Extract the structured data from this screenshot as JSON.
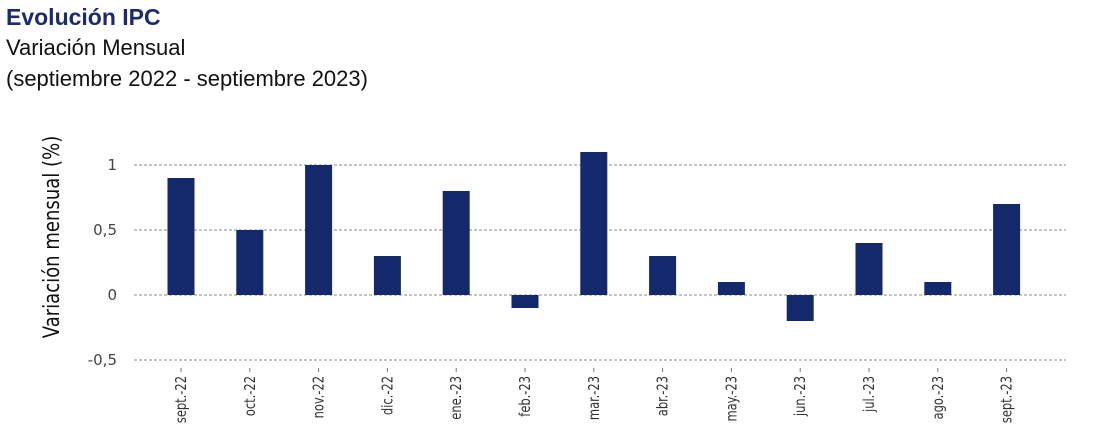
{
  "header": {
    "title": "Evolución IPC",
    "subtitle": "Variación Mensual",
    "period": "(septiembre 2022 - septiembre 2023)"
  },
  "chart_data": {
    "type": "bar",
    "categories": [
      "sept.-22",
      "oct.-22",
      "nov.-22",
      "dic.-22",
      "ene.-23",
      "feb.-23",
      "mar.-23",
      "abr.-23",
      "may.-23",
      "jun.-23",
      "jul.-23",
      "ago.-23",
      "sept.-23"
    ],
    "values": [
      0.9,
      0.5,
      1.0,
      0.3,
      0.8,
      -0.1,
      1.1,
      0.3,
      0.1,
      -0.2,
      0.4,
      0.1,
      0.7
    ],
    "title": "Evolución IPC",
    "xlabel": "",
    "ylabel": "Variación mensual (%)",
    "ylim": [
      -0.5,
      1
    ],
    "yticks": [
      -0.5,
      0,
      0.5,
      1
    ],
    "ytick_labels": [
      "-0,5",
      "0",
      "0,5",
      "1"
    ],
    "grid": true,
    "bar_color": "#14296b"
  }
}
